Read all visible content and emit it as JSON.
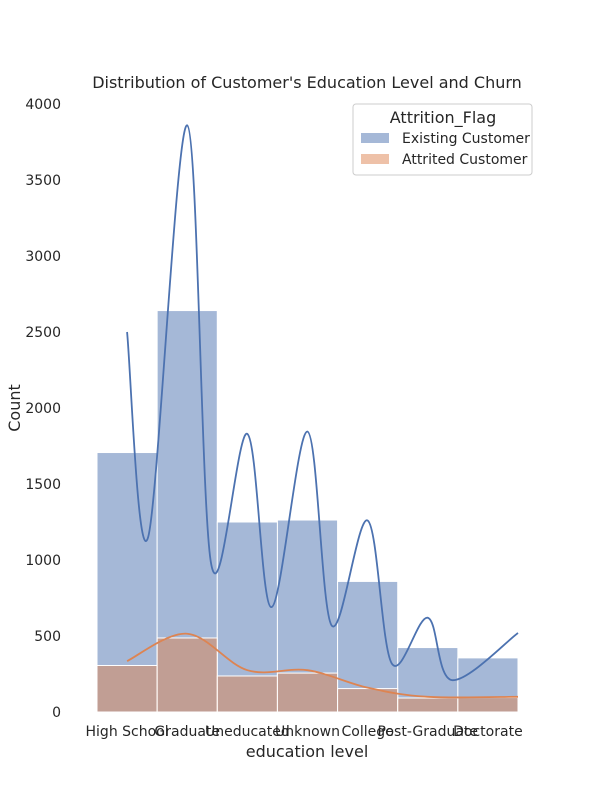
{
  "chart_data": {
    "type": "bar",
    "title": "Distribution of Customer's Education Level and Churn",
    "xlabel": "education level",
    "ylabel": "Count",
    "categories": [
      "High School",
      "Graduate",
      "Uneducated",
      "Unknown",
      "College",
      "Post-Graduate",
      "Doctorate"
    ],
    "ylim": [
      0,
      4000
    ],
    "yticks": [
      0,
      500,
      1000,
      1500,
      2000,
      2500,
      3000,
      3500,
      4000
    ],
    "grid": false,
    "legend": {
      "title": "Attrition_Flag",
      "placement": "top-right"
    },
    "series": [
      {
        "name": "Existing Customer",
        "color": "#4c72b0",
        "values": [
          1707,
          2641,
          1250,
          1263,
          859,
          424,
          356
        ],
        "kde": [
          2500,
          3860,
          1830,
          1845,
          1260,
          620,
          520
        ]
      },
      {
        "name": "Attrited Customer",
        "color": "#dd8452",
        "values": [
          306,
          487,
          237,
          256,
          154,
          92,
          95
        ],
        "kde": [
          335,
          515,
          275,
          275,
          160,
          100,
          100
        ]
      }
    ]
  }
}
